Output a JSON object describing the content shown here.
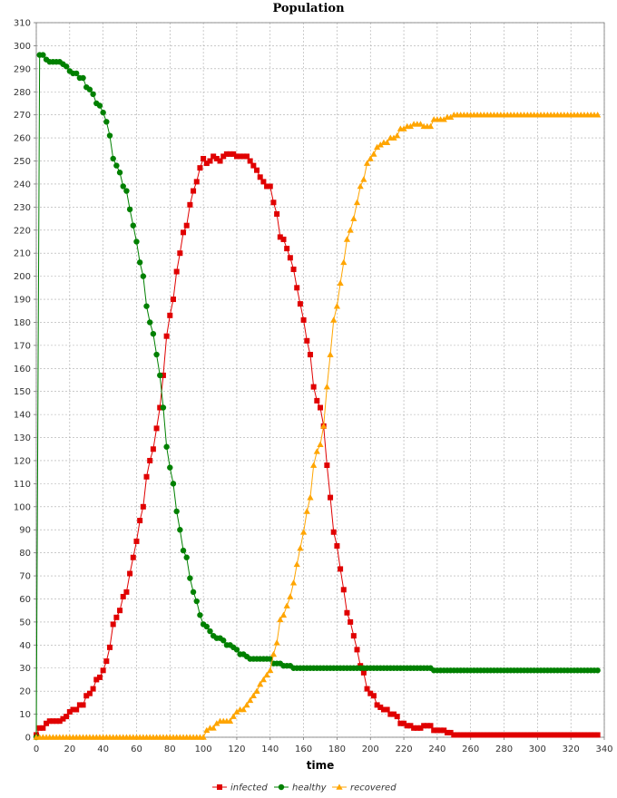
{
  "chart_data": {
    "type": "line",
    "title": "Population",
    "xlabel": "time",
    "ylabel": "",
    "xlim": [
      0,
      340
    ],
    "ylim": [
      0,
      310
    ],
    "xticks": [
      0,
      20,
      40,
      60,
      80,
      100,
      120,
      140,
      160,
      180,
      200,
      220,
      240,
      260,
      280,
      300,
      320,
      340
    ],
    "yticks": [
      0,
      10,
      20,
      30,
      40,
      50,
      60,
      70,
      80,
      90,
      100,
      110,
      120,
      130,
      140,
      150,
      160,
      170,
      180,
      190,
      200,
      210,
      220,
      230,
      240,
      250,
      260,
      270,
      280,
      290,
      300,
      310
    ],
    "grid": true,
    "legend_position": "bottom",
    "series": [
      {
        "name": "infected",
        "color": "#e00000",
        "marker": "square",
        "x": [
          0,
          2,
          4,
          6,
          8,
          10,
          12,
          14,
          16,
          18,
          20,
          22,
          24,
          26,
          28,
          30,
          32,
          34,
          36,
          38,
          40,
          42,
          44,
          46,
          48,
          50,
          52,
          54,
          56,
          58,
          60,
          62,
          64,
          66,
          68,
          70,
          72,
          74,
          76,
          78,
          80,
          82,
          84,
          86,
          88,
          90,
          92,
          94,
          96,
          98,
          100,
          102,
          104,
          106,
          108,
          110,
          112,
          114,
          116,
          118,
          120,
          122,
          124,
          126,
          128,
          130,
          132,
          134,
          136,
          138,
          140,
          142,
          144,
          146,
          148,
          150,
          152,
          154,
          156,
          158,
          160,
          162,
          164,
          166,
          168,
          170,
          172,
          174,
          176,
          178,
          180,
          182,
          184,
          186,
          188,
          190,
          192,
          194,
          196,
          198,
          200,
          202,
          204,
          206,
          208,
          210,
          212,
          214,
          216,
          218,
          220,
          222,
          224,
          226,
          228,
          230,
          232,
          234,
          236,
          238,
          240,
          242,
          244,
          246,
          248,
          250,
          252,
          254,
          256,
          258,
          260,
          262,
          264,
          266,
          268,
          270,
          272,
          274,
          276,
          278,
          280,
          282,
          284,
          286,
          288,
          290,
          292,
          294,
          296,
          298,
          300,
          302,
          304,
          306,
          308,
          310,
          312,
          314,
          316,
          318,
          320,
          322,
          324,
          326,
          328,
          330,
          332,
          334,
          336
        ],
        "values": [
          1,
          4,
          4,
          6,
          7,
          7,
          7,
          7,
          8,
          9,
          11,
          12,
          12,
          14,
          14,
          18,
          19,
          21,
          25,
          26,
          29,
          33,
          39,
          49,
          52,
          55,
          61,
          63,
          71,
          78,
          85,
          94,
          100,
          113,
          120,
          125,
          134,
          143,
          157,
          174,
          183,
          190,
          202,
          210,
          219,
          222,
          231,
          237,
          241,
          247,
          251,
          249,
          250,
          252,
          251,
          250,
          252,
          253,
          253,
          253,
          252,
          252,
          252,
          252,
          250,
          248,
          246,
          243,
          241,
          239,
          239,
          232,
          227,
          217,
          216,
          212,
          208,
          203,
          195,
          188,
          181,
          172,
          166,
          152,
          146,
          143,
          135,
          118,
          104,
          89,
          83,
          73,
          64,
          54,
          50,
          44,
          38,
          31,
          28,
          21,
          19,
          18,
          14,
          13,
          12,
          12,
          10,
          10,
          9,
          6,
          6,
          5,
          5,
          4,
          4,
          4,
          5,
          5,
          5,
          3,
          3,
          3,
          3,
          2,
          2,
          1,
          1,
          1,
          1,
          1,
          1,
          1,
          1,
          1,
          1,
          1,
          1,
          1,
          1,
          1,
          1,
          1,
          1,
          1,
          1,
          1,
          1,
          1,
          1,
          1,
          1,
          1,
          1,
          1,
          1,
          1,
          1,
          1,
          1,
          1,
          1,
          1,
          1,
          1,
          1,
          1,
          1,
          1,
          1
        ]
      },
      {
        "name": "healthy",
        "color": "#008000",
        "marker": "circle",
        "x": [
          0,
          2,
          4,
          6,
          8,
          10,
          12,
          14,
          16,
          18,
          20,
          22,
          24,
          26,
          28,
          30,
          32,
          34,
          36,
          38,
          40,
          42,
          44,
          46,
          48,
          50,
          52,
          54,
          56,
          58,
          60,
          62,
          64,
          66,
          68,
          70,
          72,
          74,
          76,
          78,
          80,
          82,
          84,
          86,
          88,
          90,
          92,
          94,
          96,
          98,
          100,
          102,
          104,
          106,
          108,
          110,
          112,
          114,
          116,
          118,
          120,
          122,
          124,
          126,
          128,
          130,
          132,
          134,
          136,
          138,
          140,
          142,
          144,
          146,
          148,
          150,
          152,
          154,
          156,
          158,
          160,
          162,
          164,
          166,
          168,
          170,
          172,
          174,
          176,
          178,
          180,
          182,
          184,
          186,
          188,
          190,
          192,
          194,
          196,
          198,
          200,
          202,
          204,
          206,
          208,
          210,
          212,
          214,
          216,
          218,
          220,
          222,
          224,
          226,
          228,
          230,
          232,
          234,
          236,
          238,
          240,
          242,
          244,
          246,
          248,
          250,
          252,
          254,
          256,
          258,
          260,
          262,
          264,
          266,
          268,
          270,
          272,
          274,
          276,
          278,
          280,
          282,
          284,
          286,
          288,
          290,
          292,
          294,
          296,
          298,
          300,
          302,
          304,
          306,
          308,
          310,
          312,
          314,
          316,
          318,
          320,
          322,
          324,
          326,
          328,
          330,
          332,
          334,
          336
        ],
        "values": [
          0,
          296,
          296,
          294,
          293,
          293,
          293,
          293,
          292,
          291,
          289,
          288,
          288,
          286,
          286,
          282,
          281,
          279,
          275,
          274,
          271,
          267,
          261,
          251,
          248,
          245,
          239,
          237,
          229,
          222,
          215,
          206,
          200,
          187,
          180,
          175,
          166,
          157,
          143,
          126,
          117,
          110,
          98,
          90,
          81,
          78,
          69,
          63,
          59,
          53,
          49,
          48,
          46,
          44,
          43,
          43,
          42,
          40,
          40,
          39,
          38,
          36,
          36,
          35,
          34,
          34,
          34,
          34,
          34,
          34,
          34,
          32,
          32,
          32,
          31,
          31,
          31,
          30,
          30,
          30,
          30,
          30,
          30,
          30,
          30,
          30,
          30,
          30,
          30,
          30,
          30,
          30,
          30,
          30,
          30,
          30,
          30,
          30,
          30,
          30,
          30,
          30,
          30,
          30,
          30,
          30,
          30,
          30,
          30,
          30,
          30,
          30,
          30,
          30,
          30,
          30,
          30,
          30,
          30,
          29,
          29,
          29,
          29,
          29,
          29,
          29,
          29,
          29,
          29,
          29,
          29,
          29,
          29,
          29,
          29,
          29,
          29,
          29,
          29,
          29,
          29,
          29,
          29,
          29,
          29,
          29,
          29,
          29,
          29,
          29,
          29,
          29,
          29,
          29,
          29,
          29,
          29,
          29,
          29,
          29,
          29,
          29,
          29,
          29,
          29,
          29,
          29,
          29,
          29
        ]
      },
      {
        "name": "recovered",
        "color": "#ffa500",
        "marker": "triangle",
        "x": [
          0,
          2,
          4,
          6,
          8,
          10,
          12,
          14,
          16,
          18,
          20,
          22,
          24,
          26,
          28,
          30,
          32,
          34,
          36,
          38,
          40,
          42,
          44,
          46,
          48,
          50,
          52,
          54,
          56,
          58,
          60,
          62,
          64,
          66,
          68,
          70,
          72,
          74,
          76,
          78,
          80,
          82,
          84,
          86,
          88,
          90,
          92,
          94,
          96,
          98,
          100,
          102,
          104,
          106,
          108,
          110,
          112,
          114,
          116,
          118,
          120,
          122,
          124,
          126,
          128,
          130,
          132,
          134,
          136,
          138,
          140,
          142,
          144,
          146,
          148,
          150,
          152,
          154,
          156,
          158,
          160,
          162,
          164,
          166,
          168,
          170,
          172,
          174,
          176,
          178,
          180,
          182,
          184,
          186,
          188,
          190,
          192,
          194,
          196,
          198,
          200,
          202,
          204,
          206,
          208,
          210,
          212,
          214,
          216,
          218,
          220,
          222,
          224,
          226,
          228,
          230,
          232,
          234,
          236,
          238,
          240,
          242,
          244,
          246,
          248,
          250,
          252,
          254,
          256,
          258,
          260,
          262,
          264,
          266,
          268,
          270,
          272,
          274,
          276,
          278,
          280,
          282,
          284,
          286,
          288,
          290,
          292,
          294,
          296,
          298,
          300,
          302,
          304,
          306,
          308,
          310,
          312,
          314,
          316,
          318,
          320,
          322,
          324,
          326,
          328,
          330,
          332,
          334,
          336
        ],
        "values": [
          0,
          0,
          0,
          0,
          0,
          0,
          0,
          0,
          0,
          0,
          0,
          0,
          0,
          0,
          0,
          0,
          0,
          0,
          0,
          0,
          0,
          0,
          0,
          0,
          0,
          0,
          0,
          0,
          0,
          0,
          0,
          0,
          0,
          0,
          0,
          0,
          0,
          0,
          0,
          0,
          0,
          0,
          0,
          0,
          0,
          0,
          0,
          0,
          0,
          0,
          0,
          3,
          4,
          4,
          6,
          7,
          7,
          7,
          7,
          9,
          11,
          12,
          12,
          14,
          16,
          18,
          20,
          23,
          25,
          27,
          29,
          36,
          41,
          51,
          53,
          57,
          61,
          67,
          75,
          82,
          89,
          98,
          104,
          118,
          124,
          127,
          135,
          152,
          166,
          181,
          187,
          197,
          206,
          216,
          220,
          225,
          232,
          239,
          242,
          249,
          251,
          253,
          256,
          257,
          258,
          258,
          260,
          260,
          261,
          264,
          264,
          265,
          265,
          266,
          266,
          266,
          265,
          265,
          265,
          268,
          268,
          268,
          268,
          269,
          269,
          270,
          270,
          270,
          270,
          270,
          270,
          270,
          270,
          270,
          270,
          270,
          270,
          270,
          270,
          270,
          270,
          270,
          270,
          270,
          270,
          270,
          270,
          270,
          270,
          270,
          270,
          270,
          270,
          270,
          270,
          270,
          270,
          270,
          270,
          270,
          270,
          270,
          270,
          270,
          270,
          270,
          270,
          270,
          270
        ]
      }
    ]
  }
}
